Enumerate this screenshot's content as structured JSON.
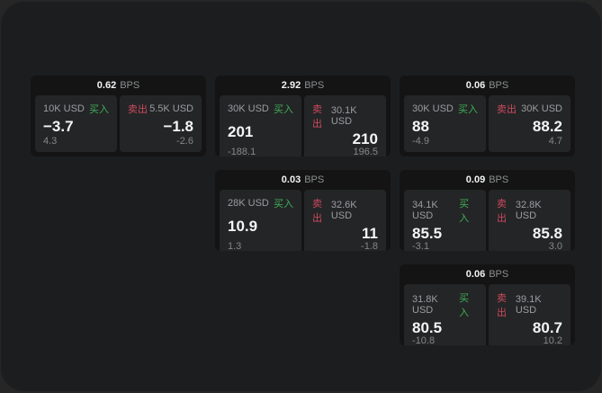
{
  "labels": {
    "bps_unit": "BPS",
    "buy": "买入",
    "sell": "卖出"
  },
  "colors": {
    "buy_green": "#3fae57",
    "sell_red": "#cc4a5f",
    "window_bg": "#1c1d1e",
    "card_bg": "#141414",
    "cell_bg": "#242526"
  },
  "cards": [
    {
      "bps": "0.62",
      "buy": {
        "size": "10K USD",
        "price": "−3.7",
        "sub": "4.3"
      },
      "sell": {
        "size": "5.5K USD",
        "price": "−1.8",
        "sub": "-2.6"
      }
    },
    {
      "bps": "2.92",
      "buy": {
        "size": "30K USD",
        "price": "201",
        "sub": "-188.1"
      },
      "sell": {
        "size": "30.1K USD",
        "price": "210",
        "sub": "196.5"
      }
    },
    {
      "bps": "0.06",
      "buy": {
        "size": "30K USD",
        "price": "88",
        "sub": "-4.9"
      },
      "sell": {
        "size": "30K USD",
        "price": "88.2",
        "sub": "4.7"
      }
    },
    {
      "bps": "0.03",
      "buy": {
        "size": "28K USD",
        "price": "10.9",
        "sub": "1.3"
      },
      "sell": {
        "size": "32.6K USD",
        "price": "11",
        "sub": "-1.8"
      }
    },
    {
      "bps": "0.09",
      "buy": {
        "size": "34.1K USD",
        "price": "85.5",
        "sub": "-3.1"
      },
      "sell": {
        "size": "32.8K USD",
        "price": "85.8",
        "sub": "3.0"
      }
    },
    {
      "bps": "0.06",
      "buy": {
        "size": "31.8K USD",
        "price": "80.5",
        "sub": "-10.8"
      },
      "sell": {
        "size": "39.1K USD",
        "price": "80.7",
        "sub": "10.2"
      }
    }
  ]
}
